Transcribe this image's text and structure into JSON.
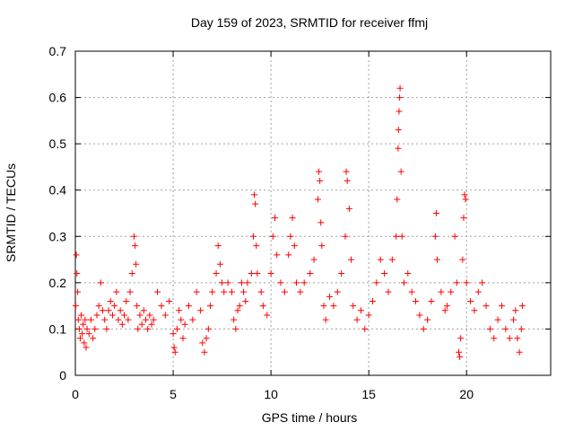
{
  "chart_data": {
    "type": "scatter",
    "title": "Day 159 of 2023, SRMTID for receiver ffmj",
    "xlabel": "GPS time / hours",
    "ylabel": "SRMTID / TECUs",
    "xlim": [
      0,
      24.3
    ],
    "ylim": [
      0,
      0.7
    ],
    "xticks": [
      "0",
      "5",
      "10",
      "15",
      "20"
    ],
    "yticks": [
      "0",
      "0.1",
      "0.2",
      "0.3",
      "0.4",
      "0.5",
      "0.6",
      "0.7"
    ],
    "grid": true,
    "marker": "+",
    "series": [
      {
        "name": "SRMTID",
        "color": "#ff0000",
        "points": [
          [
            0.02,
            0.15
          ],
          [
            0.05,
            0.26
          ],
          [
            0.08,
            0.22
          ],
          [
            0.12,
            0.18
          ],
          [
            0.15,
            0.12
          ],
          [
            0.2,
            0.1
          ],
          [
            0.25,
            0.08
          ],
          [
            0.3,
            0.13
          ],
          [
            0.35,
            0.09
          ],
          [
            0.4,
            0.11
          ],
          [
            0.45,
            0.07
          ],
          [
            0.5,
            0.12
          ],
          [
            0.55,
            0.06
          ],
          [
            0.6,
            0.1
          ],
          [
            0.7,
            0.09
          ],
          [
            0.8,
            0.12
          ],
          [
            0.9,
            0.08
          ],
          [
            1.0,
            0.1
          ],
          [
            1.1,
            0.13
          ],
          [
            1.2,
            0.15
          ],
          [
            1.3,
            0.2
          ],
          [
            1.4,
            0.14
          ],
          [
            1.5,
            0.12
          ],
          [
            1.6,
            0.1
          ],
          [
            1.7,
            0.14
          ],
          [
            1.8,
            0.16
          ],
          [
            1.9,
            0.13
          ],
          [
            2.0,
            0.15
          ],
          [
            2.1,
            0.18
          ],
          [
            2.2,
            0.12
          ],
          [
            2.3,
            0.14
          ],
          [
            2.4,
            0.11
          ],
          [
            2.5,
            0.13
          ],
          [
            2.6,
            0.16
          ],
          [
            2.7,
            0.12
          ],
          [
            2.8,
            0.18
          ],
          [
            2.9,
            0.22
          ],
          [
            3.0,
            0.3
          ],
          [
            3.05,
            0.28
          ],
          [
            3.1,
            0.24
          ],
          [
            3.15,
            0.15
          ],
          [
            3.2,
            0.1
          ],
          [
            3.3,
            0.13
          ],
          [
            3.4,
            0.11
          ],
          [
            3.5,
            0.14
          ],
          [
            3.6,
            0.12
          ],
          [
            3.7,
            0.1
          ],
          [
            3.8,
            0.13
          ],
          [
            3.9,
            0.11
          ],
          [
            4.0,
            0.12
          ],
          [
            4.2,
            0.18
          ],
          [
            4.4,
            0.15
          ],
          [
            4.6,
            0.13
          ],
          [
            4.8,
            0.16
          ],
          [
            5.0,
            0.09
          ],
          [
            5.05,
            0.06
          ],
          [
            5.1,
            0.05
          ],
          [
            5.2,
            0.1
          ],
          [
            5.3,
            0.14
          ],
          [
            5.4,
            0.12
          ],
          [
            5.5,
            0.08
          ],
          [
            5.6,
            0.11
          ],
          [
            5.8,
            0.15
          ],
          [
            6.0,
            0.12
          ],
          [
            6.2,
            0.18
          ],
          [
            6.4,
            0.14
          ],
          [
            6.5,
            0.07
          ],
          [
            6.6,
            0.05
          ],
          [
            6.7,
            0.08
          ],
          [
            6.8,
            0.1
          ],
          [
            6.9,
            0.15
          ],
          [
            7.0,
            0.18
          ],
          [
            7.2,
            0.22
          ],
          [
            7.3,
            0.28
          ],
          [
            7.4,
            0.24
          ],
          [
            7.5,
            0.2
          ],
          [
            7.6,
            0.18
          ],
          [
            7.8,
            0.2
          ],
          [
            8.0,
            0.18
          ],
          [
            8.1,
            0.12
          ],
          [
            8.2,
            0.1
          ],
          [
            8.3,
            0.14
          ],
          [
            8.4,
            0.15
          ],
          [
            8.5,
            0.2
          ],
          [
            8.6,
            0.18
          ],
          [
            8.7,
            0.16
          ],
          [
            8.8,
            0.2
          ],
          [
            9.0,
            0.22
          ],
          [
            9.1,
            0.3
          ],
          [
            9.15,
            0.39
          ],
          [
            9.2,
            0.37
          ],
          [
            9.25,
            0.28
          ],
          [
            9.3,
            0.22
          ],
          [
            9.5,
            0.18
          ],
          [
            9.6,
            0.15
          ],
          [
            9.8,
            0.13
          ],
          [
            10.0,
            0.22
          ],
          [
            10.1,
            0.3
          ],
          [
            10.2,
            0.34
          ],
          [
            10.3,
            0.26
          ],
          [
            10.5,
            0.2
          ],
          [
            10.7,
            0.18
          ],
          [
            10.9,
            0.26
          ],
          [
            11.0,
            0.3
          ],
          [
            11.1,
            0.34
          ],
          [
            11.2,
            0.28
          ],
          [
            11.3,
            0.2
          ],
          [
            11.5,
            0.18
          ],
          [
            11.7,
            0.2
          ],
          [
            12.0,
            0.22
          ],
          [
            12.2,
            0.25
          ],
          [
            12.4,
            0.38
          ],
          [
            12.45,
            0.44
          ],
          [
            12.5,
            0.42
          ],
          [
            12.55,
            0.33
          ],
          [
            12.6,
            0.28
          ],
          [
            12.7,
            0.15
          ],
          [
            12.8,
            0.12
          ],
          [
            13.0,
            0.17
          ],
          [
            13.2,
            0.15
          ],
          [
            13.4,
            0.18
          ],
          [
            13.6,
            0.22
          ],
          [
            13.8,
            0.3
          ],
          [
            13.85,
            0.44
          ],
          [
            13.9,
            0.42
          ],
          [
            14.0,
            0.36
          ],
          [
            14.1,
            0.25
          ],
          [
            14.2,
            0.15
          ],
          [
            14.4,
            0.12
          ],
          [
            14.6,
            0.14
          ],
          [
            14.8,
            0.1
          ],
          [
            15.0,
            0.13
          ],
          [
            15.2,
            0.16
          ],
          [
            15.4,
            0.2
          ],
          [
            15.6,
            0.25
          ],
          [
            15.8,
            0.22
          ],
          [
            16.0,
            0.18
          ],
          [
            16.2,
            0.25
          ],
          [
            16.4,
            0.3
          ],
          [
            16.45,
            0.38
          ],
          [
            16.5,
            0.49
          ],
          [
            16.52,
            0.53
          ],
          [
            16.55,
            0.57
          ],
          [
            16.58,
            0.6
          ],
          [
            16.6,
            0.62
          ],
          [
            16.65,
            0.44
          ],
          [
            16.7,
            0.3
          ],
          [
            16.8,
            0.2
          ],
          [
            17.0,
            0.22
          ],
          [
            17.2,
            0.18
          ],
          [
            17.4,
            0.16
          ],
          [
            17.6,
            0.13
          ],
          [
            17.8,
            0.1
          ],
          [
            18.0,
            0.12
          ],
          [
            18.2,
            0.16
          ],
          [
            18.4,
            0.3
          ],
          [
            18.45,
            0.35
          ],
          [
            18.5,
            0.25
          ],
          [
            18.7,
            0.18
          ],
          [
            18.9,
            0.14
          ],
          [
            19.0,
            0.15
          ],
          [
            19.2,
            0.18
          ],
          [
            19.4,
            0.3
          ],
          [
            19.5,
            0.2
          ],
          [
            19.6,
            0.05
          ],
          [
            19.65,
            0.04
          ],
          [
            19.7,
            0.08
          ],
          [
            19.8,
            0.25
          ],
          [
            19.85,
            0.34
          ],
          [
            19.9,
            0.39
          ],
          [
            19.95,
            0.38
          ],
          [
            20.0,
            0.2
          ],
          [
            20.2,
            0.16
          ],
          [
            20.4,
            0.14
          ],
          [
            20.6,
            0.18
          ],
          [
            20.8,
            0.2
          ],
          [
            21.0,
            0.15
          ],
          [
            21.2,
            0.1
          ],
          [
            21.4,
            0.08
          ],
          [
            21.6,
            0.12
          ],
          [
            21.8,
            0.15
          ],
          [
            22.0,
            0.1
          ],
          [
            22.2,
            0.08
          ],
          [
            22.4,
            0.12
          ],
          [
            22.5,
            0.14
          ],
          [
            22.6,
            0.08
          ],
          [
            22.7,
            0.05
          ],
          [
            22.8,
            0.1
          ],
          [
            22.85,
            0.15
          ]
        ]
      }
    ]
  }
}
